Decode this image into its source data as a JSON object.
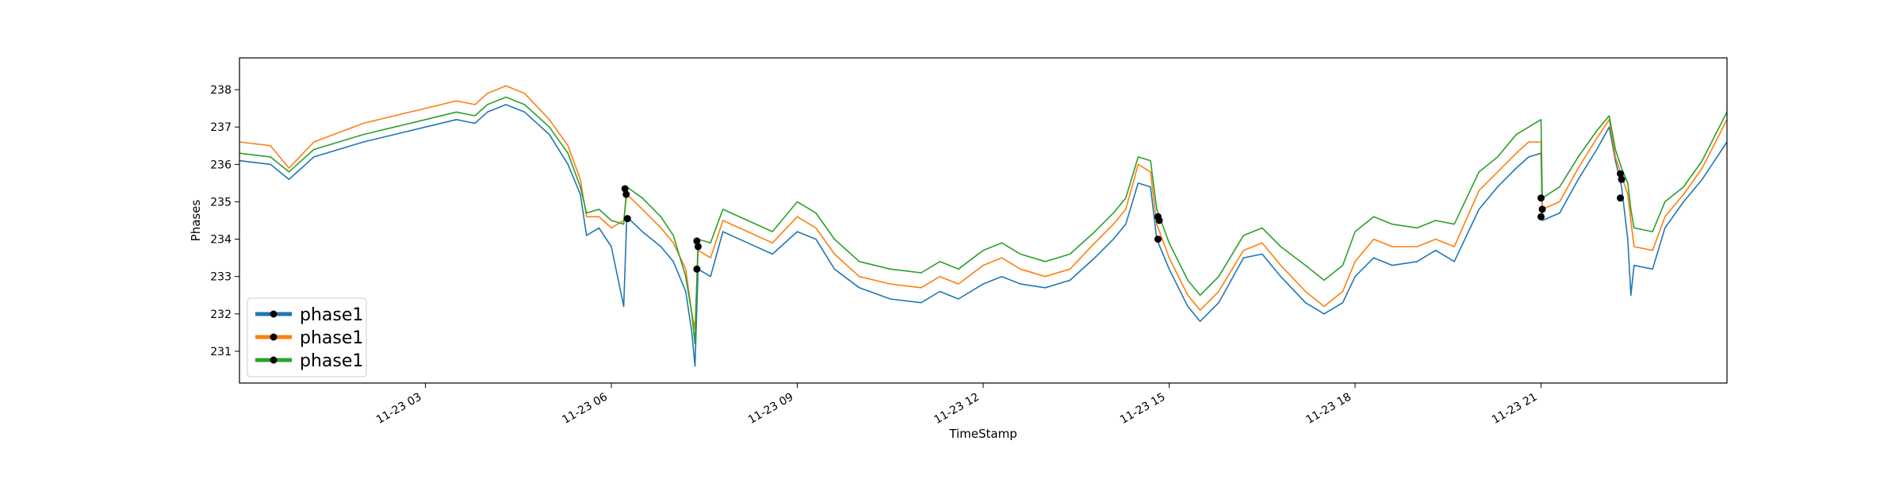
{
  "chart_data": {
    "type": "line",
    "xlabel": "TimeStamp",
    "ylabel": "Phases",
    "x_range": [
      0.0,
      24.0
    ],
    "ylim": [
      230.15,
      238.85
    ],
    "x_ticks": [
      {
        "value": 3,
        "label": "11-23 03"
      },
      {
        "value": 6,
        "label": "11-23 06"
      },
      {
        "value": 9,
        "label": "11-23 09"
      },
      {
        "value": 12,
        "label": "11-23 12"
      },
      {
        "value": 15,
        "label": "11-23 15"
      },
      {
        "value": 18,
        "label": "11-23 18"
      },
      {
        "value": 21,
        "label": "11-23 21"
      }
    ],
    "y_ticks": [
      231,
      232,
      233,
      234,
      235,
      236,
      237,
      238
    ],
    "grid": false,
    "legend_position": "lower-left",
    "series": [
      {
        "name": "phase1",
        "color": "#1f77b4",
        "points": [
          [
            0,
            236.1
          ],
          [
            0.5,
            236.0
          ],
          [
            0.8,
            235.6
          ],
          [
            1.2,
            236.2
          ],
          [
            2,
            236.6
          ],
          [
            2.5,
            236.8
          ],
          [
            3,
            237.0
          ],
          [
            3.5,
            237.2
          ],
          [
            3.8,
            237.1
          ],
          [
            4,
            237.4
          ],
          [
            4.3,
            237.6
          ],
          [
            4.6,
            237.4
          ],
          [
            5,
            236.8
          ],
          [
            5.3,
            236.0
          ],
          [
            5.5,
            235.2
          ],
          [
            5.6,
            234.1
          ],
          [
            5.8,
            234.3
          ],
          [
            6.0,
            233.8
          ],
          [
            6.2,
            232.2
          ],
          [
            6.25,
            234.6
          ],
          [
            6.5,
            234.2
          ],
          [
            6.8,
            233.8
          ],
          [
            7.0,
            233.4
          ],
          [
            7.2,
            232.6
          ],
          [
            7.3,
            231.5
          ],
          [
            7.35,
            230.6
          ],
          [
            7.4,
            233.2
          ],
          [
            7.6,
            233.0
          ],
          [
            7.8,
            234.2
          ],
          [
            8.2,
            233.9
          ],
          [
            8.6,
            233.6
          ],
          [
            9.0,
            234.2
          ],
          [
            9.3,
            234.0
          ],
          [
            9.6,
            233.2
          ],
          [
            10,
            232.7
          ],
          [
            10.5,
            232.4
          ],
          [
            11,
            232.3
          ],
          [
            11.3,
            232.6
          ],
          [
            11.6,
            232.4
          ],
          [
            12,
            232.8
          ],
          [
            12.3,
            233.0
          ],
          [
            12.6,
            232.8
          ],
          [
            13,
            232.7
          ],
          [
            13.4,
            232.9
          ],
          [
            13.8,
            233.5
          ],
          [
            14.1,
            234.0
          ],
          [
            14.3,
            234.4
          ],
          [
            14.5,
            235.5
          ],
          [
            14.7,
            235.4
          ],
          [
            14.8,
            234.0
          ],
          [
            15.0,
            233.2
          ],
          [
            15.3,
            232.2
          ],
          [
            15.5,
            231.8
          ],
          [
            15.8,
            232.3
          ],
          [
            16.2,
            233.5
          ],
          [
            16.5,
            233.6
          ],
          [
            16.8,
            233.0
          ],
          [
            17.2,
            232.3
          ],
          [
            17.5,
            232.0
          ],
          [
            17.8,
            232.3
          ],
          [
            18,
            233.0
          ],
          [
            18.3,
            233.5
          ],
          [
            18.6,
            233.3
          ],
          [
            19,
            233.4
          ],
          [
            19.3,
            233.7
          ],
          [
            19.6,
            233.4
          ],
          [
            20,
            234.8
          ],
          [
            20.3,
            235.4
          ],
          [
            20.6,
            235.9
          ],
          [
            20.8,
            236.2
          ],
          [
            21.0,
            236.3
          ],
          [
            21.02,
            234.5
          ],
          [
            21.3,
            234.7
          ],
          [
            21.6,
            235.6
          ],
          [
            21.9,
            236.4
          ],
          [
            22.1,
            237.0
          ],
          [
            22.2,
            236.1
          ],
          [
            22.3,
            235.4
          ],
          [
            22.4,
            234.0
          ],
          [
            22.45,
            232.5
          ],
          [
            22.5,
            233.3
          ],
          [
            22.8,
            233.2
          ],
          [
            23.0,
            234.3
          ],
          [
            23.3,
            235.0
          ],
          [
            23.6,
            235.6
          ],
          [
            24,
            236.6
          ]
        ]
      },
      {
        "name": "phase1",
        "color": "#ff7f0e",
        "points": [
          [
            0,
            236.6
          ],
          [
            0.5,
            236.5
          ],
          [
            0.8,
            235.9
          ],
          [
            1.2,
            236.6
          ],
          [
            2,
            237.1
          ],
          [
            2.5,
            237.3
          ],
          [
            3,
            237.5
          ],
          [
            3.5,
            237.7
          ],
          [
            3.8,
            237.6
          ],
          [
            4,
            237.9
          ],
          [
            4.3,
            238.1
          ],
          [
            4.6,
            237.9
          ],
          [
            5,
            237.2
          ],
          [
            5.3,
            236.5
          ],
          [
            5.5,
            235.6
          ],
          [
            5.6,
            234.6
          ],
          [
            5.8,
            234.6
          ],
          [
            6.0,
            234.3
          ],
          [
            6.2,
            234.5
          ],
          [
            6.25,
            235.2
          ],
          [
            6.5,
            234.8
          ],
          [
            6.8,
            234.3
          ],
          [
            7.0,
            233.9
          ],
          [
            7.2,
            233.2
          ],
          [
            7.3,
            232.0
          ],
          [
            7.35,
            231.6
          ],
          [
            7.4,
            233.7
          ],
          [
            7.6,
            233.5
          ],
          [
            7.8,
            234.5
          ],
          [
            8.2,
            234.2
          ],
          [
            8.6,
            233.9
          ],
          [
            9.0,
            234.6
          ],
          [
            9.3,
            234.3
          ],
          [
            9.6,
            233.6
          ],
          [
            10,
            233.0
          ],
          [
            10.5,
            232.8
          ],
          [
            11,
            232.7
          ],
          [
            11.3,
            233.0
          ],
          [
            11.6,
            232.8
          ],
          [
            12,
            233.3
          ],
          [
            12.3,
            233.5
          ],
          [
            12.6,
            233.2
          ],
          [
            13,
            233.0
          ],
          [
            13.4,
            233.2
          ],
          [
            13.8,
            233.9
          ],
          [
            14.1,
            234.4
          ],
          [
            14.3,
            234.8
          ],
          [
            14.5,
            236.0
          ],
          [
            14.7,
            235.8
          ],
          [
            14.8,
            234.4
          ],
          [
            15.0,
            233.5
          ],
          [
            15.3,
            232.5
          ],
          [
            15.5,
            232.1
          ],
          [
            15.8,
            232.6
          ],
          [
            16.2,
            233.7
          ],
          [
            16.5,
            233.9
          ],
          [
            16.8,
            233.3
          ],
          [
            17.2,
            232.6
          ],
          [
            17.5,
            232.2
          ],
          [
            17.8,
            232.6
          ],
          [
            18,
            233.4
          ],
          [
            18.3,
            234.0
          ],
          [
            18.6,
            233.8
          ],
          [
            19,
            233.8
          ],
          [
            19.3,
            234.0
          ],
          [
            19.6,
            233.8
          ],
          [
            20,
            235.3
          ],
          [
            20.3,
            235.8
          ],
          [
            20.6,
            236.3
          ],
          [
            20.8,
            236.6
          ],
          [
            21.0,
            236.6
          ],
          [
            21.02,
            234.8
          ],
          [
            21.3,
            235.0
          ],
          [
            21.6,
            235.9
          ],
          [
            21.9,
            236.7
          ],
          [
            22.1,
            237.2
          ],
          [
            22.2,
            236.2
          ],
          [
            22.3,
            235.7
          ],
          [
            22.4,
            235.2
          ],
          [
            22.45,
            234.5
          ],
          [
            22.5,
            233.8
          ],
          [
            22.8,
            233.7
          ],
          [
            23.0,
            234.6
          ],
          [
            23.3,
            235.2
          ],
          [
            23.6,
            235.9
          ],
          [
            24,
            237.2
          ]
        ]
      },
      {
        "name": "phase1",
        "color": "#2ca02c",
        "points": [
          [
            0,
            236.3
          ],
          [
            0.5,
            236.2
          ],
          [
            0.8,
            235.8
          ],
          [
            1.2,
            236.4
          ],
          [
            2,
            236.8
          ],
          [
            2.5,
            237.0
          ],
          [
            3,
            237.2
          ],
          [
            3.5,
            237.4
          ],
          [
            3.8,
            237.3
          ],
          [
            4,
            237.6
          ],
          [
            4.3,
            237.8
          ],
          [
            4.6,
            237.6
          ],
          [
            5,
            237.0
          ],
          [
            5.3,
            236.3
          ],
          [
            5.5,
            235.4
          ],
          [
            5.6,
            234.7
          ],
          [
            5.8,
            234.8
          ],
          [
            6.0,
            234.5
          ],
          [
            6.2,
            234.4
          ],
          [
            6.25,
            235.4
          ],
          [
            6.5,
            235.1
          ],
          [
            6.8,
            234.6
          ],
          [
            7.0,
            234.1
          ],
          [
            7.2,
            233.0
          ],
          [
            7.3,
            232.0
          ],
          [
            7.35,
            231.2
          ],
          [
            7.4,
            234.0
          ],
          [
            7.6,
            233.9
          ],
          [
            7.8,
            234.8
          ],
          [
            8.2,
            234.5
          ],
          [
            8.6,
            234.2
          ],
          [
            9.0,
            235.0
          ],
          [
            9.3,
            234.7
          ],
          [
            9.6,
            234.0
          ],
          [
            10,
            233.4
          ],
          [
            10.5,
            233.2
          ],
          [
            11,
            233.1
          ],
          [
            11.3,
            233.4
          ],
          [
            11.6,
            233.2
          ],
          [
            12,
            233.7
          ],
          [
            12.3,
            233.9
          ],
          [
            12.6,
            233.6
          ],
          [
            13,
            233.4
          ],
          [
            13.4,
            233.6
          ],
          [
            13.8,
            234.2
          ],
          [
            14.1,
            234.7
          ],
          [
            14.3,
            235.1
          ],
          [
            14.5,
            236.2
          ],
          [
            14.7,
            236.1
          ],
          [
            14.8,
            234.8
          ],
          [
            15.0,
            233.9
          ],
          [
            15.3,
            232.9
          ],
          [
            15.5,
            232.5
          ],
          [
            15.8,
            233.0
          ],
          [
            16.2,
            234.1
          ],
          [
            16.5,
            234.3
          ],
          [
            16.8,
            233.8
          ],
          [
            17.2,
            233.3
          ],
          [
            17.5,
            232.9
          ],
          [
            17.8,
            233.3
          ],
          [
            18,
            234.2
          ],
          [
            18.3,
            234.6
          ],
          [
            18.6,
            234.4
          ],
          [
            19,
            234.3
          ],
          [
            19.3,
            234.5
          ],
          [
            19.6,
            234.4
          ],
          [
            20,
            235.8
          ],
          [
            20.3,
            236.2
          ],
          [
            20.6,
            236.8
          ],
          [
            20.8,
            237.0
          ],
          [
            21.0,
            237.2
          ],
          [
            21.02,
            235.1
          ],
          [
            21.3,
            235.4
          ],
          [
            21.6,
            236.2
          ],
          [
            21.9,
            236.9
          ],
          [
            22.1,
            237.3
          ],
          [
            22.2,
            236.4
          ],
          [
            22.3,
            235.9
          ],
          [
            22.4,
            235.5
          ],
          [
            22.45,
            234.8
          ],
          [
            22.5,
            234.3
          ],
          [
            22.8,
            234.2
          ],
          [
            23.0,
            235.0
          ],
          [
            23.3,
            235.4
          ],
          [
            23.6,
            236.1
          ],
          [
            24,
            237.4
          ]
        ]
      }
    ],
    "markers": [
      {
        "x": 6.22,
        "y": 235.35
      },
      {
        "x": 6.24,
        "y": 235.2
      },
      {
        "x": 6.26,
        "y": 234.55
      },
      {
        "x": 7.38,
        "y": 233.95
      },
      {
        "x": 7.4,
        "y": 233.8
      },
      {
        "x": 7.38,
        "y": 233.2
      },
      {
        "x": 14.82,
        "y": 234.6
      },
      {
        "x": 14.84,
        "y": 234.5
      },
      {
        "x": 14.82,
        "y": 234.0
      },
      {
        "x": 21.0,
        "y": 235.1
      },
      {
        "x": 21.02,
        "y": 234.8
      },
      {
        "x": 21.0,
        "y": 234.6
      },
      {
        "x": 22.28,
        "y": 235.75
      },
      {
        "x": 22.3,
        "y": 235.6
      },
      {
        "x": 22.28,
        "y": 235.1
      }
    ],
    "marker_color": "#000000",
    "legend": [
      {
        "label": "phase1",
        "color": "#1f77b4"
      },
      {
        "label": "phase1",
        "color": "#ff7f0e"
      },
      {
        "label": "phase1",
        "color": "#2ca02c"
      }
    ]
  }
}
